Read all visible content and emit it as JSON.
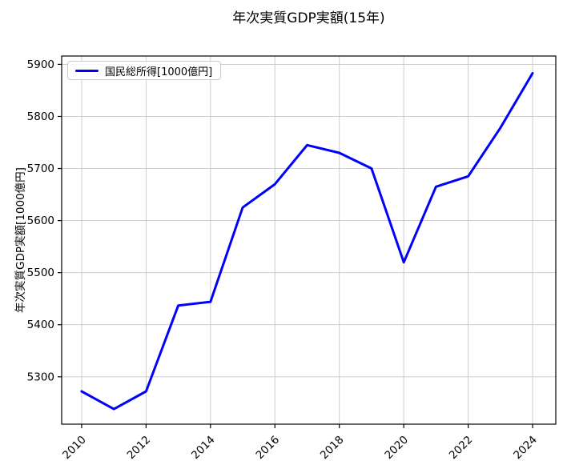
{
  "chart_data": {
    "type": "line",
    "title": "年次実質GDP実額(15年)",
    "ylabel": "年次実質GDP実額[1000億円]",
    "xlabel": "",
    "grid": true,
    "legend_position": "upper left",
    "background_color": "#ffffff",
    "grid_color": "#c8c8c8",
    "x_ticks": [
      2010,
      2012,
      2014,
      2016,
      2018,
      2020,
      2022,
      2024
    ],
    "y_ticks": [
      5300,
      5400,
      5500,
      5600,
      5700,
      5800,
      5900
    ],
    "xlim": [
      2009.38,
      2024.72
    ],
    "ylim": [
      5209,
      5916
    ],
    "series": [
      {
        "name": "国民総所得[1000億円]",
        "color": "#0000ff",
        "x": [
          2010,
          2011,
          2012,
          2013,
          2014,
          2015,
          2016,
          2017,
          2018,
          2019,
          2020,
          2021,
          2022,
          2023,
          2024
        ],
        "values": [
          5272,
          5238,
          5272,
          5437,
          5444,
          5625,
          5670,
          5745,
          5730,
          5700,
          5520,
          5665,
          5685,
          5778,
          5883
        ]
      }
    ]
  }
}
